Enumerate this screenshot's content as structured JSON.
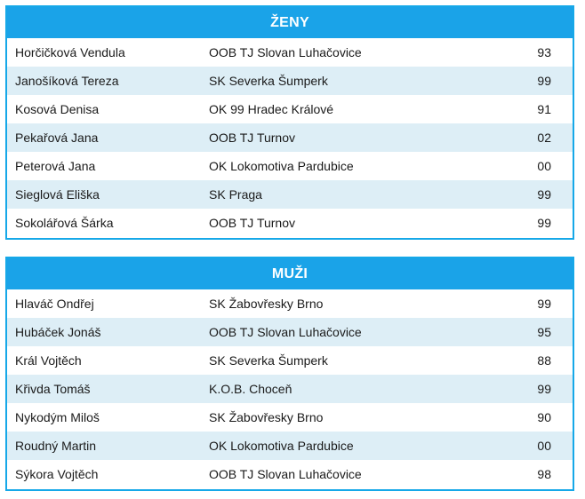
{
  "women": {
    "title": "ŽENY",
    "rows": [
      {
        "name": "Horčičková Vendula",
        "club": "OOB TJ Slovan Luhačovice",
        "year": "93"
      },
      {
        "name": "Janošíková Tereza",
        "club": "SK Severka Šumperk",
        "year": "99"
      },
      {
        "name": "Kosová Denisa",
        "club": "OK 99 Hradec Králové",
        "year": "91"
      },
      {
        "name": "Pekařová Jana",
        "club": "OOB TJ Turnov",
        "year": "02"
      },
      {
        "name": "Peterová Jana",
        "club": "OK Lokomotiva Pardubice",
        "year": "00"
      },
      {
        "name": "Sieglová Eliška",
        "club": "SK Praga",
        "year": "99"
      },
      {
        "name": "Sokolářová Šárka",
        "club": "OOB TJ Turnov",
        "year": "99"
      }
    ]
  },
  "men": {
    "title": "MUŽI",
    "rows": [
      {
        "name": "Hlaváč Ondřej",
        "club": "SK Žabovřesky Brno",
        "year": "99"
      },
      {
        "name": "Hubáček Jonáš",
        "club": "OOB TJ Slovan Luhačovice",
        "year": "95"
      },
      {
        "name": "Král Vojtěch",
        "club": "SK Severka Šumperk",
        "year": "88"
      },
      {
        "name": "Křivda Tomáš",
        "club": "K.O.B. Choceň",
        "year": "99"
      },
      {
        "name": "Nykodým Miloš",
        "club": "SK Žabovřesky Brno",
        "year": "90"
      },
      {
        "name": "Roudný Martin",
        "club": "OK Lokomotiva Pardubice",
        "year": "00"
      },
      {
        "name": "Sýkora Vojtěch",
        "club": "OOB TJ Slovan Luhačovice",
        "year": "98"
      }
    ]
  },
  "colors": {
    "header_bg": "#1aa3e8",
    "border": "#16a8e8",
    "alt_row_bg": "#ddeef6"
  }
}
